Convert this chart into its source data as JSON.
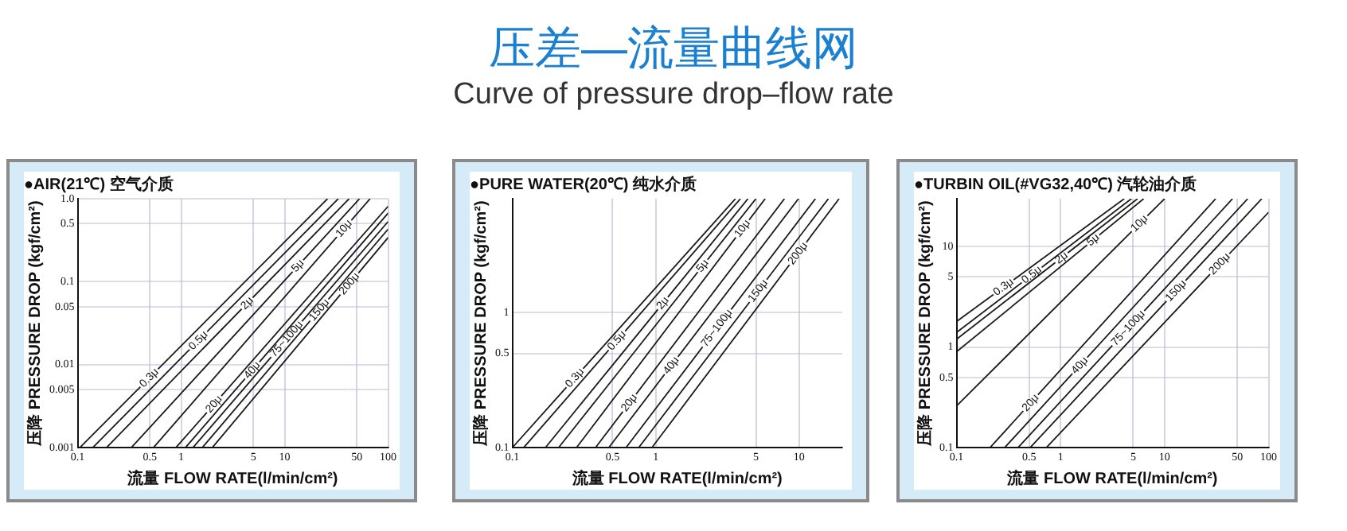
{
  "chart_data": [
    {
      "type": "other",
      "title": "压差—流量曲线网",
      "subtitle": "Curve of pressure drop–flow rate"
    },
    {
      "type": "line",
      "title": "●AIR(21℃) 空气介质",
      "xlabel": "流量 FLOW RATE(l/min/cm²)",
      "ylabel": "压降 PRESSURE DROP (kgf/cm²)",
      "log": "xy",
      "grid": true,
      "legend": false,
      "xlim": [
        0.1,
        100
      ],
      "xticks": [
        0.1,
        0.5,
        1,
        5,
        10,
        50,
        100
      ],
      "ylim": [
        0.001,
        1
      ],
      "yticks": [
        0.001,
        0.005,
        0.01,
        0.05,
        0.1,
        0.5,
        {
          "value": 1,
          "label": "1.0"
        }
      ],
      "series": [
        {
          "name": "0.3μ",
          "color": "#1a1a1a",
          "x": [
            0.105,
            26
          ],
          "values": [
            0.001,
            1
          ]
        },
        {
          "name": "0.5μ",
          "color": "#1a1a1a",
          "x": [
            0.14,
            33
          ],
          "values": [
            0.001,
            1
          ]
        },
        {
          "name": "2μ",
          "color": "#1a1a1a",
          "x": [
            0.19,
            42
          ],
          "values": [
            0.001,
            1
          ]
        },
        {
          "name": "5μ",
          "color": "#1a1a1a",
          "x": [
            0.33,
            53
          ],
          "values": [
            0.001,
            1
          ]
        },
        {
          "name": "10μ",
          "color": "#1a1a1a",
          "x": [
            0.54,
            67
          ],
          "values": [
            0.001,
            1
          ]
        },
        {
          "name": "20μ",
          "color": "#1a1a1a",
          "x": [
            0.89,
            100
          ],
          "values": [
            0.001,
            0.81
          ]
        },
        {
          "name": "40μ",
          "color": "#1a1a1a",
          "x": [
            1.1,
            100
          ],
          "values": [
            0.001,
            0.67
          ]
        },
        {
          "name": "75~100μ",
          "color": "#1a1a1a",
          "x": [
            1.3,
            100
          ],
          "values": [
            0.001,
            0.53
          ]
        },
        {
          "name": "150μ",
          "color": "#1a1a1a",
          "x": [
            1.6,
            100
          ],
          "values": [
            0.001,
            0.43
          ]
        },
        {
          "name": "200μ",
          "color": "#1a1a1a",
          "x": [
            2,
            100
          ],
          "values": [
            0.001,
            0.34
          ]
        }
      ]
    },
    {
      "type": "line",
      "title": "●PURE WATER(20℃) 纯水介质",
      "xlabel": "流量 FLOW RATE(l/min/cm²)",
      "ylabel": "压降 PRESSURE DROP (kgf/cm²)",
      "log": "xy",
      "grid": true,
      "legend": false,
      "xlim": [
        0.1,
        20
      ],
      "xticks": [
        0.1,
        0.5,
        1,
        5,
        10
      ],
      "ylim": [
        0.1,
        7
      ],
      "yticks": [
        0.1,
        0.5,
        1
      ],
      "series": [
        {
          "name": "0.3μ",
          "color": "#1a1a1a",
          "x": [
            0.1,
            3.6
          ],
          "values": [
            0.1,
            7
          ]
        },
        {
          "name": "0.5μ",
          "color": "#1a1a1a",
          "x": [
            0.12,
            3.9
          ],
          "values": [
            0.1,
            7
          ]
        },
        {
          "name": "2μ",
          "color": "#1a1a1a",
          "x": [
            0.17,
            4.4
          ],
          "values": [
            0.1,
            7
          ]
        },
        {
          "name": "5μ",
          "color": "#1a1a1a",
          "x": [
            0.21,
            5
          ],
          "values": [
            0.1,
            7
          ]
        },
        {
          "name": "10μ",
          "color": "#1a1a1a",
          "x": [
            0.28,
            5.8
          ],
          "values": [
            0.1,
            7
          ]
        },
        {
          "name": "20μ",
          "color": "#1a1a1a",
          "x": [
            0.38,
            7.9
          ],
          "values": [
            0.1,
            7
          ]
        },
        {
          "name": "40μ",
          "color": "#1a1a1a",
          "x": [
            0.47,
            9.9
          ],
          "values": [
            0.1,
            7
          ]
        },
        {
          "name": "75~100μ",
          "color": "#1a1a1a",
          "x": [
            0.62,
            13
          ],
          "values": [
            0.1,
            7
          ]
        },
        {
          "name": "150μ",
          "color": "#1a1a1a",
          "x": [
            0.76,
            16
          ],
          "values": [
            0.1,
            7
          ]
        },
        {
          "name": "200μ",
          "color": "#1a1a1a",
          "x": [
            0.94,
            19
          ],
          "values": [
            0.1,
            7
          ]
        }
      ]
    },
    {
      "type": "line",
      "title": "●TURBIN OIL(#VG32,40℃) 汽轮油介质",
      "xlabel": "流量 FLOW RATE(l/min/cm²)",
      "ylabel": "压降 PRESSURE DROP (kgf/cm²)",
      "log": "xy",
      "grid": true,
      "legend": false,
      "xlim": [
        0.1,
        100
      ],
      "xticks": [
        0.1,
        0.5,
        1,
        5,
        10,
        50,
        100
      ],
      "ylim": [
        0.1,
        30
      ],
      "yticks": [
        0.1,
        0.5,
        1,
        5,
        10
      ],
      "series": [
        {
          "name": "0.3μ",
          "color": "#1a1a1a",
          "x": [
            0.1,
            4.1
          ],
          "values": [
            1.8,
            30
          ]
        },
        {
          "name": "0.5μ",
          "color": "#1a1a1a",
          "x": [
            0.1,
            4.8
          ],
          "values": [
            1.4,
            30
          ]
        },
        {
          "name": "2μ",
          "color": "#1a1a1a",
          "x": [
            0.1,
            5.5
          ],
          "values": [
            1.2,
            30
          ]
        },
        {
          "name": "5μ",
          "color": "#1a1a1a",
          "x": [
            0.1,
            6.3
          ],
          "values": [
            0.9,
            30
          ]
        },
        {
          "name": "10μ",
          "color": "#1a1a1a",
          "x": [
            0.1,
            10
          ],
          "values": [
            0.26,
            30
          ]
        },
        {
          "name": "20μ",
          "color": "#1a1a1a",
          "x": [
            0.21,
            31
          ],
          "values": [
            0.1,
            30
          ]
        },
        {
          "name": "40μ",
          "color": "#1a1a1a",
          "x": [
            0.29,
            45
          ],
          "values": [
            0.1,
            30
          ]
        },
        {
          "name": "75~100μ",
          "color": "#1a1a1a",
          "x": [
            0.39,
            63
          ],
          "values": [
            0.1,
            30
          ]
        },
        {
          "name": "150μ",
          "color": "#1a1a1a",
          "x": [
            0.51,
            86
          ],
          "values": [
            0.1,
            30
          ]
        },
        {
          "name": "200μ",
          "color": "#1a1a1a",
          "x": [
            0.73,
            100
          ],
          "values": [
            0.1,
            22
          ]
        }
      ]
    }
  ]
}
